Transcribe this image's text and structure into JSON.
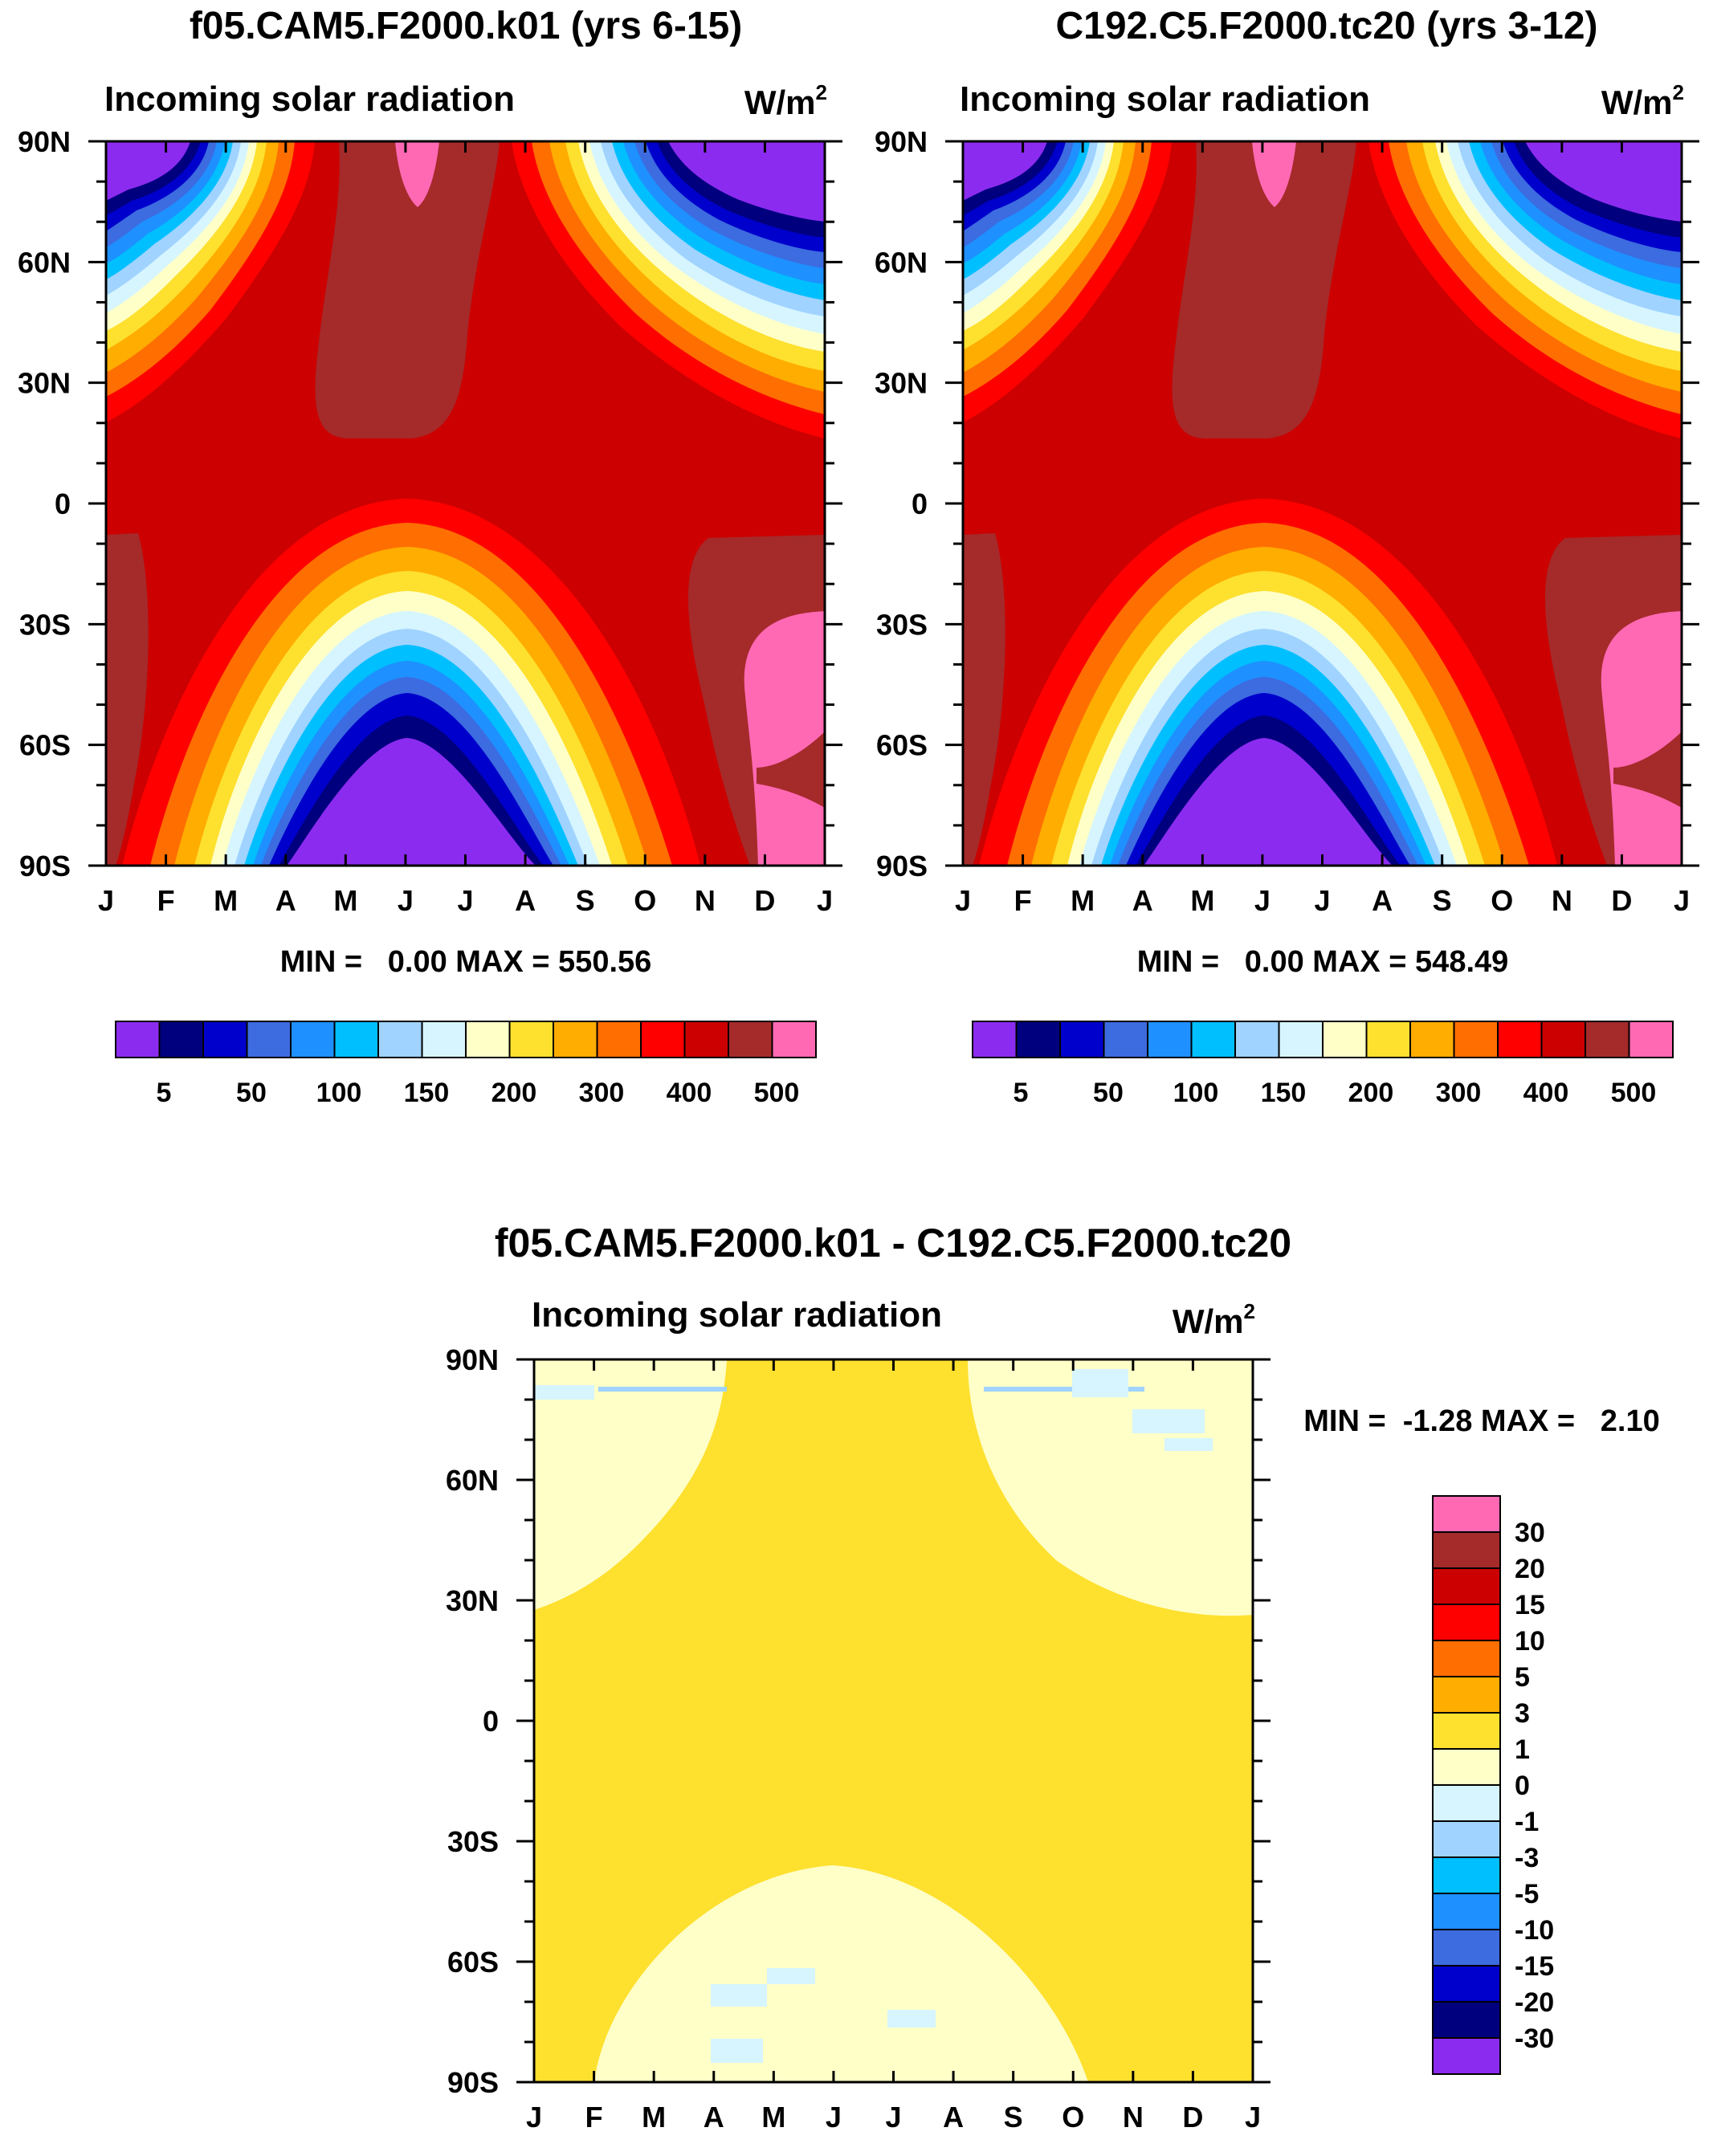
{
  "chart_data": [
    {
      "type": "heatmap",
      "title": "f05.CAM5.F2000.k01 (yrs 6-15)",
      "subtitle": "Incoming solar radiation",
      "units": "W/m2",
      "units_base": "W/m",
      "units_sup": "2",
      "xlabel": "",
      "ylabel": "",
      "x_ticks": [
        "J",
        "F",
        "M",
        "A",
        "M",
        "J",
        "J",
        "A",
        "S",
        "O",
        "N",
        "D",
        "J"
      ],
      "y_ticks": [
        "90N",
        "60N",
        "30N",
        "0",
        "30S",
        "60S",
        "90S"
      ],
      "ylim": [
        -90,
        90
      ],
      "stats": "MIN =   0.00 MAX = 550.56",
      "colorbar": {
        "orientation": "horizontal",
        "labels": [
          "5",
          "50",
          "100",
          "150",
          "200",
          "300",
          "400",
          "500"
        ],
        "colors": [
          "#8c2bf0",
          "#00007f",
          "#0000cc",
          "#3d6be0",
          "#1e90ff",
          "#00bfff",
          "#a0d3ff",
          "#d6f5ff",
          "#ffffc8",
          "#fee02e",
          "#ffad00",
          "#ff6e00",
          "#ff0000",
          "#cc0000",
          "#a52a2a",
          "#ff69b4"
        ]
      }
    },
    {
      "type": "heatmap",
      "title": "C192.C5.F2000.tc20 (yrs 3-12)",
      "subtitle": "Incoming solar radiation",
      "units": "W/m2",
      "units_base": "W/m",
      "units_sup": "2",
      "xlabel": "",
      "ylabel": "",
      "x_ticks": [
        "J",
        "F",
        "M",
        "A",
        "M",
        "J",
        "J",
        "A",
        "S",
        "O",
        "N",
        "D",
        "J"
      ],
      "y_ticks": [
        "90N",
        "60N",
        "30N",
        "0",
        "30S",
        "60S",
        "90S"
      ],
      "ylim": [
        -90,
        90
      ],
      "stats": "MIN =   0.00 MAX = 548.49",
      "colorbar": {
        "orientation": "horizontal",
        "labels": [
          "5",
          "50",
          "100",
          "150",
          "200",
          "300",
          "400",
          "500"
        ],
        "colors": [
          "#8c2bf0",
          "#00007f",
          "#0000cc",
          "#3d6be0",
          "#1e90ff",
          "#00bfff",
          "#a0d3ff",
          "#d6f5ff",
          "#ffffc8",
          "#fee02e",
          "#ffad00",
          "#ff6e00",
          "#ff0000",
          "#cc0000",
          "#a52a2a",
          "#ff69b4"
        ]
      }
    },
    {
      "type": "heatmap",
      "title": "f05.CAM5.F2000.k01 - C192.C5.F2000.tc20",
      "subtitle": "Incoming solar radiation",
      "units": "W/m2",
      "units_base": "W/m",
      "units_sup": "2",
      "xlabel": "",
      "ylabel": "",
      "x_ticks": [
        "J",
        "F",
        "M",
        "A",
        "M",
        "J",
        "J",
        "A",
        "S",
        "O",
        "N",
        "D",
        "J"
      ],
      "y_ticks": [
        "90N",
        "60N",
        "30N",
        "0",
        "30S",
        "60S",
        "90S"
      ],
      "ylim": [
        -90,
        90
      ],
      "stats": "MIN =  -1.28 MAX =   2.10",
      "colorbar": {
        "orientation": "vertical",
        "labels": [
          "30",
          "20",
          "15",
          "10",
          "5",
          "3",
          "1",
          "0",
          "-1",
          "-3",
          "-5",
          "-10",
          "-15",
          "-20",
          "-30"
        ],
        "colors": [
          "#ff69b4",
          "#a52a2a",
          "#cc0000",
          "#ff0000",
          "#ff6e00",
          "#ffad00",
          "#fee02e",
          "#ffffc8",
          "#d6f5ff",
          "#a0d3ff",
          "#00bfff",
          "#1e90ff",
          "#3d6be0",
          "#0000cc",
          "#00007f",
          "#8c2bf0"
        ]
      }
    }
  ]
}
